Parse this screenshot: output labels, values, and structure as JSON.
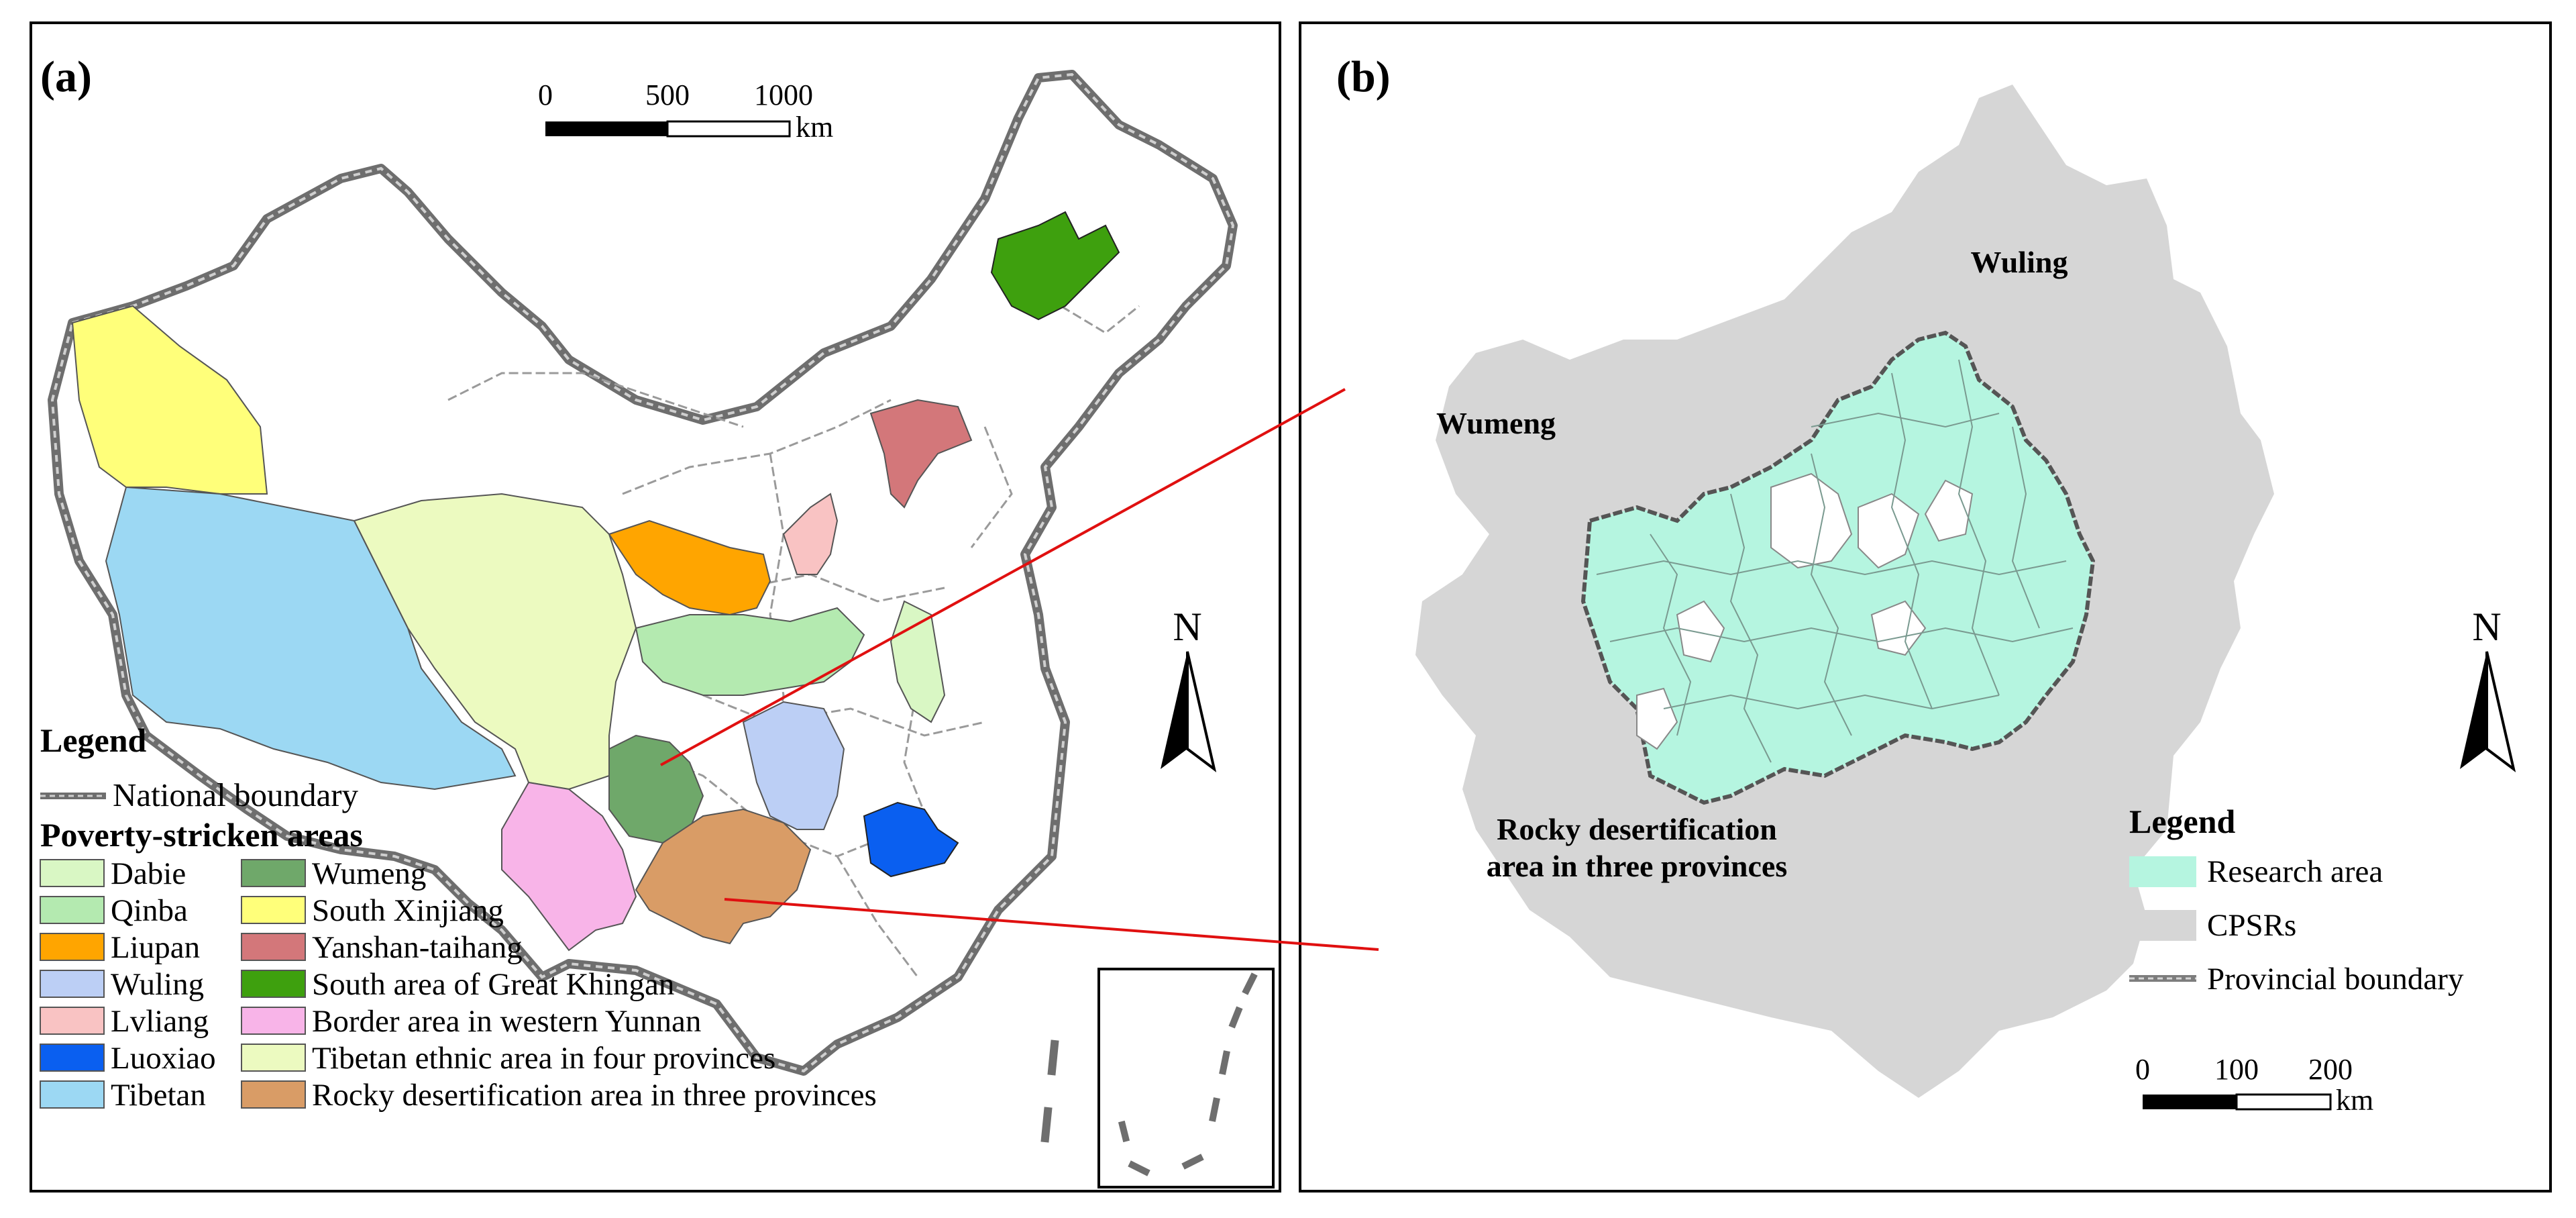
{
  "panel_a": {
    "label": "(a)",
    "scale_bar": {
      "ticks": [
        "0",
        "500",
        "1000"
      ],
      "unit": "km"
    },
    "north": "N",
    "legend": {
      "title": "Legend",
      "boundary_label": "National boundary",
      "areas_title": "Poverty-stricken areas",
      "items": [
        {
          "name": "Dabie",
          "color": "#d9f7c4"
        },
        {
          "name": "Qinba",
          "color": "#b4eab0"
        },
        {
          "name": "Liupan",
          "color": "#ffa500"
        },
        {
          "name": "Wuling",
          "color": "#bccff5"
        },
        {
          "name": "Lvliang",
          "color": "#f9c3c3"
        },
        {
          "name": "Luoxiao",
          "color": "#0a5ff0"
        },
        {
          "name": "Tibetan",
          "color": "#9cd8f3"
        },
        {
          "name": "Wumeng",
          "color": "#6fa86a"
        },
        {
          "name": "South Xinjiang",
          "color": "#ffff7a"
        },
        {
          "name": "Yanshan-taihang",
          "color": "#d3777a"
        },
        {
          "name": "South area of Great Khingan",
          "color": "#3ea00e"
        },
        {
          "name": "Border area in western Yunnan",
          "color": "#f8b4e8"
        },
        {
          "name": "Tibetan ethnic area in four provinces",
          "color": "#ecfac0"
        },
        {
          "name": "Rocky desertification area in three provinces",
          "color": "#d99c66"
        }
      ]
    }
  },
  "panel_b": {
    "label": "(b)",
    "region_labels": {
      "wuling": "Wuling",
      "wumeng": "Wumeng",
      "rocky_line1": "Rocky desertification",
      "rocky_line2": "area in three provinces"
    },
    "north": "N",
    "legend": {
      "title": "Legend",
      "items": [
        {
          "name": "Research area",
          "color": "#b5f5e0"
        },
        {
          "name": "CPSRs",
          "color": "#d6d6d6"
        },
        {
          "name": "Provincial boundary",
          "color": "#7d7d7d"
        }
      ]
    },
    "scale_bar": {
      "ticks": [
        "0",
        "100",
        "200"
      ],
      "unit": "km"
    }
  },
  "connector_color": "#e01010"
}
